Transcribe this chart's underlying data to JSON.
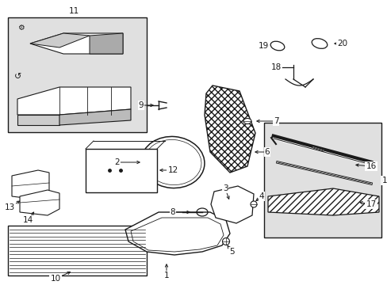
{
  "bg_color": "#ffffff",
  "line_color": "#1a1a1a",
  "box_fill": "#e0e0e0",
  "fs": 7.5,
  "figsize": [
    4.89,
    3.6
  ],
  "dpi": 100
}
